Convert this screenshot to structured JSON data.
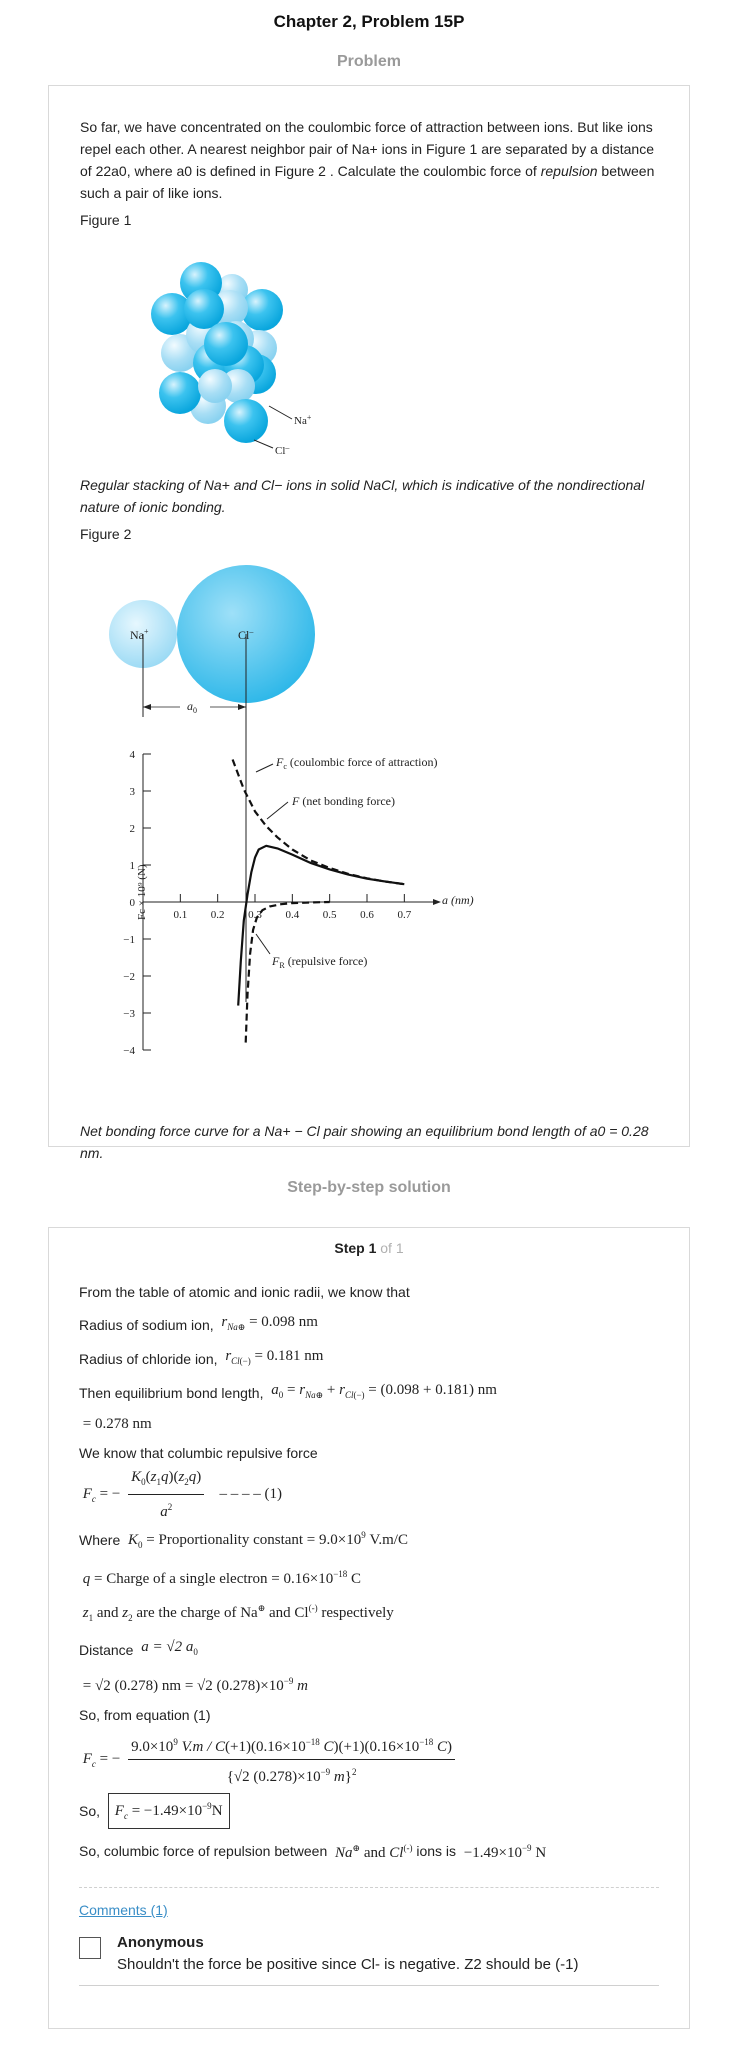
{
  "header": {
    "title": "Chapter 2, Problem 15P",
    "problem_heading": "Problem",
    "solution_heading": "Step-by-step solution"
  },
  "problem": {
    "paragraph_a": "So far, we have concentrated on the coulombic force of attraction between ions. But like ions repel each other. A nearest neighbor pair of Na+ ions in Figure 1 are separated by a distance of 22a0, where a0 is defined in Figure 2 . Calculate the coulombic force of ",
    "paragraph_italic": "repulsion",
    "paragraph_b": " between such a pair of like ions.",
    "figure1_label": "Figure 1",
    "figure1_caption": "Regular stacking of Na+ and Cl− ions in solid NaCl, which is indicative of the nondirectional nature of ionic bonding.",
    "figure2_label": "Figure 2",
    "figure2_caption": "Net bonding force curve for a Na+ − Cl pair showing an equilibrium bond length of a0 = 0.28 nm."
  },
  "figure1": {
    "na_label": "Na",
    "na_sup": "+",
    "cl_label": "Cl",
    "cl_sup": "–"
  },
  "figure2": {
    "na_label": "Na",
    "na_sup": "+",
    "cl_label": "Cl",
    "cl_sup": "–",
    "a0_label": "a",
    "a0_sub": "0",
    "fc_label": "(coulombic force of attraction)",
    "fc_sym": "F",
    "fc_sub": "c",
    "f_label": "(net bonding force)",
    "f_sym": "F",
    "fr_label": "(repulsive force)",
    "fr_sym": "F",
    "fr_sub": "R",
    "xaxis_label": "a (nm)",
    "yaxis_label": "Fc × 10⁹ (N)",
    "colors": {
      "na": "#9fdcf6",
      "cl": "#2db9ea",
      "cl_light": "#a9e0f6"
    }
  },
  "chart_data": {
    "type": "line",
    "xlabel": "a (nm)",
    "ylabel": "Fc × 10⁹ (N)",
    "xlim": [
      0,
      0.75
    ],
    "ylim": [
      -4,
      4
    ],
    "xticks": [
      "0.1",
      "0.2",
      "0.3",
      "0.4",
      "0.5",
      "0.6",
      "0.7"
    ],
    "yticks": [
      "4",
      "3",
      "2",
      "1",
      "0",
      "−1",
      "−2",
      "−3",
      "−4"
    ],
    "series": [
      {
        "name": "Fc (coulombic force of attraction)",
        "style": "dashed",
        "x": [
          0.24,
          0.27,
          0.3,
          0.33,
          0.36,
          0.4,
          0.45,
          0.5,
          0.55,
          0.6,
          0.65,
          0.7
        ],
        "y": [
          3.85,
          3.05,
          2.45,
          2.05,
          1.75,
          1.42,
          1.12,
          0.92,
          0.76,
          0.64,
          0.55,
          0.48
        ]
      },
      {
        "name": "F (net bonding force)",
        "style": "solid",
        "x": [
          0.255,
          0.262,
          0.27,
          0.28,
          0.29,
          0.3,
          0.31,
          0.33,
          0.36,
          0.4,
          0.45,
          0.5,
          0.55,
          0.6,
          0.65,
          0.7
        ],
        "y": [
          -2.8,
          -1.6,
          -0.5,
          0.2,
          0.8,
          1.2,
          1.42,
          1.52,
          1.45,
          1.28,
          1.05,
          0.88,
          0.74,
          0.63,
          0.55,
          0.48
        ]
      },
      {
        "name": "FR (repulsive force)",
        "style": "dashed",
        "x": [
          0.275,
          0.28,
          0.287,
          0.295,
          0.305,
          0.32,
          0.34,
          0.37,
          0.4,
          0.45,
          0.5
        ],
        "y": [
          -3.8,
          -2.5,
          -1.4,
          -0.75,
          -0.42,
          -0.22,
          -0.12,
          -0.06,
          -0.03,
          -0.01,
          0
        ]
      }
    ]
  },
  "solution": {
    "step_label": "Step 1",
    "step_of": "of 1",
    "line1": "From the table of atomic and ionic radii, we know that",
    "sodium_text": "Radius of sodium ion,",
    "sodium_eq": "= 0.098 nm",
    "chloride_text": "Radius of chloride ion,",
    "chloride_eq": "= 0.181 nm",
    "bond_text": "Then equilibrium bond length,",
    "bond_eq": "= (0.098 + 0.181) nm",
    "bond_result": "= 0.278 nm",
    "repulsive_text": "We know that columbic repulsive force",
    "eq1_tag": "– – – –  (1)",
    "where_text": "Where",
    "k0_def": "= Proportionality constant = 9.0×10",
    "k0_exp": "9",
    "k0_unit": "V.m/C",
    "q_def": "= Charge of a single electron = 0.16×10",
    "q_exp": "−18",
    "q_unit": "C",
    "z_def": "and",
    "z_def2": "are the charge of Na",
    "z_def3": "and Cl",
    "z_def4": "respectively",
    "distance_text": "Distance",
    "distance_eq": "a = √2 a",
    "distance_line": "= √2 (0.278) nm = √2 (0.278)×10",
    "distance_exp": "−9",
    "distance_unit": "m",
    "from_eq_text": "So, from equation (1)",
    "so_text": "So,",
    "result_eq": "= −1.49×10",
    "result_exp": "−9",
    "result_unit": "N",
    "final_text": "So, columbic force of repulsion between",
    "final_and": "and",
    "final_ions": "ions is",
    "final_value": "−1.49×10",
    "final_exp": "−9",
    "final_unit": "N"
  },
  "comments": {
    "link_label": "Comments (1)",
    "author": "Anonymous",
    "text": "Shouldn't the force be positive since Cl- is negative. Z2 should be (-1)"
  }
}
